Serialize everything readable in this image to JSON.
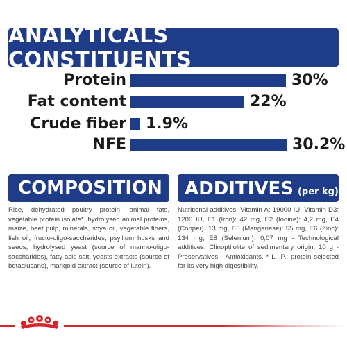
{
  "title": "ANALYTICALS CONSTITUENTS",
  "nutrients": [
    {
      "label": "Protein",
      "value": "30%",
      "percent": 30
    },
    {
      "label": "Fat content",
      "value": "22%",
      "percent": 22
    },
    {
      "label": "Crude fiber",
      "value": "1.9%",
      "percent": 1.9
    },
    {
      "label": "NFE",
      "value": "30.2%",
      "percent": 30.2
    }
  ],
  "composition": {
    "heading": "COMPOSITION",
    "text": "Rice, dehydrated poultry protein, animal fats, vegetable protein isolate*, hydrolysed animal proteins, maize, beet pulp, minerals, soya oil, vegetable fibers, fish oil, fructo-oligo-saccharides, psyllium husks and seeds, hydrolysed yeast (source of manno-oligo-saccharides), fatty acid salt, yeasts extracts (source of betaglucans), marigold extract (source of lutein)."
  },
  "additives": {
    "heading": "ADDITIVES",
    "subheading": "(per kg)",
    "text": "Nutritional additives: Vitamin A: 19000 IU, Vitamin D3: 1200 IU, E1 (Iron): 42 mg, E2 (Iodine): 4,2 mg, E4 (Copper): 13 mg, E5 (Manganese): 55 mg, E6 (Zinc): 134 mg, E8 (Selenium): 0,07 mg - Technological additives: Clinoptilolite of sedimentary origin: 10 g - Preservatives - Antioxidants. * L.I.P.: protein selected for its very high digestibility."
  },
  "colors": {
    "brand_blue": "#1f3c88",
    "brand_red": "#d7262b"
  },
  "footer": {
    "logo_icon": "royal-canin-crown-icon"
  }
}
